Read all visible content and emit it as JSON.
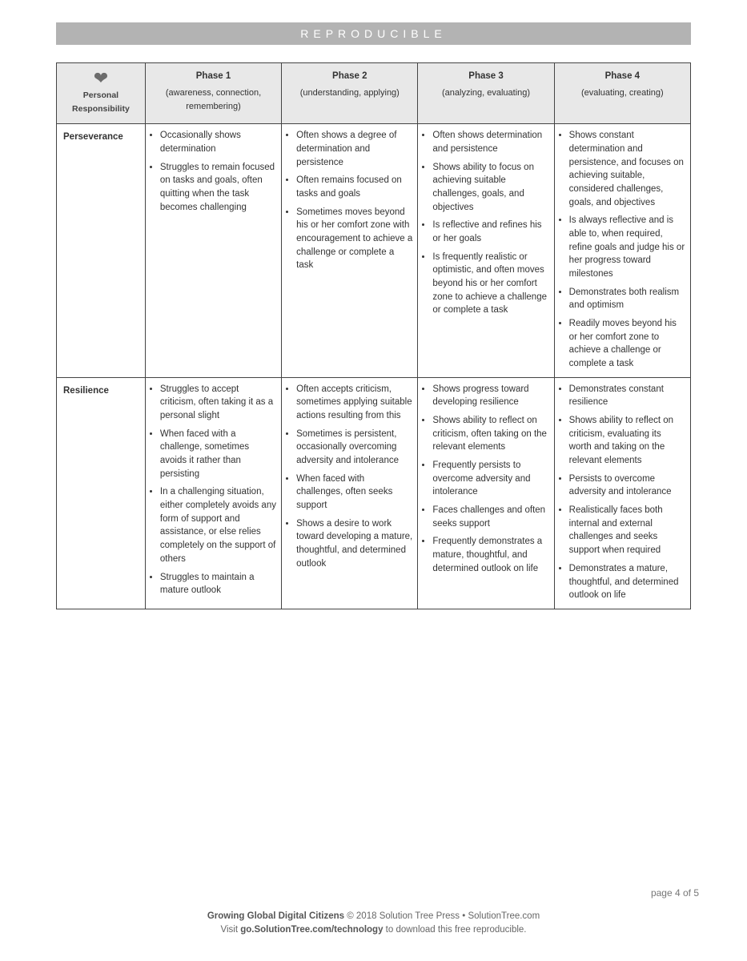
{
  "banner": "REPRODUCIBLE",
  "corner": {
    "icon": "❤",
    "line1": "Personal",
    "line2": "Responsibility"
  },
  "phases": [
    {
      "title": "Phase 1",
      "sub": "(awareness, connection, remembering)"
    },
    {
      "title": "Phase 2",
      "sub": "(understanding, applying)"
    },
    {
      "title": "Phase 3",
      "sub": "(analyzing, evaluating)"
    },
    {
      "title": "Phase 4",
      "sub": "(evaluating, creating)"
    }
  ],
  "rows": [
    {
      "label": "Perseverance",
      "cells": [
        [
          "Occasionally shows determination",
          "Struggles to remain focused on tasks and goals, often quitting when the task becomes challenging"
        ],
        [
          "Often shows a degree of determination and persistence",
          "Often remains focused on tasks and goals",
          "Sometimes moves beyond his or her comfort zone with encouragement to achieve a challenge or complete a task"
        ],
        [
          "Often shows determination and persistence",
          "Shows ability to focus on achieving suitable challenges, goals, and objectives",
          "Is reflective and refines his or her goals",
          "Is frequently realistic or optimistic, and often moves beyond his or her comfort zone to achieve a challenge or complete a task"
        ],
        [
          "Shows constant determination and persistence, and focuses on achieving suitable, considered challenges, goals, and objectives",
          "Is always reflective and is able to, when required, refine goals and judge his or her progress toward milestones",
          "Demonstrates both realism and optimism",
          "Readily moves beyond his or her comfort zone to achieve a challenge or complete a task"
        ]
      ]
    },
    {
      "label": "Resilience",
      "cells": [
        [
          "Struggles to accept criticism, often taking it as a personal slight",
          "When faced with a challenge, sometimes avoids it rather than persisting",
          "In a challenging situation, either completely avoids any form of support and assistance, or else relies completely on the support of others",
          "Struggles to maintain a mature outlook"
        ],
        [
          "Often accepts criticism, sometimes applying suitable actions resulting from this",
          "Sometimes is persistent, occasionally overcoming adversity and intolerance",
          "When faced with challenges, often seeks support",
          "Shows a desire to work toward developing a mature, thoughtful, and determined outlook"
        ],
        [
          "Shows progress toward developing resilience",
          "Shows ability to reflect on criticism, often taking on the relevant elements",
          "Frequently persists to overcome adversity and intolerance",
          "Faces challenges and often seeks support",
          "Frequently demonstrates a mature, thoughtful, and determined outlook on life"
        ],
        [
          "Demonstrates constant resilience",
          "Shows ability to reflect on criticism, evaluating its worth and taking on the relevant elements",
          "Persists to overcome adversity and intolerance",
          "Realistically faces both internal and external challenges and seeks support when required",
          "Demonstrates a mature, thoughtful, and determined outlook on life"
        ]
      ]
    }
  ],
  "pagenum": "page 4 of 5",
  "footer": {
    "title": "Growing Global Digital Citizens",
    "rest1": " © 2018 Solution Tree Press • SolutionTree.com",
    "line2a": "Visit ",
    "link": "go.SolutionTree.com/technology",
    "line2b": " to download this free reproducible."
  },
  "colors": {
    "banner_bg": "#b3b3b3",
    "banner_text": "#ffffff",
    "header_bg": "#e8e8e8",
    "border": "#444444",
    "text": "#333333",
    "footer_text": "#666666"
  }
}
